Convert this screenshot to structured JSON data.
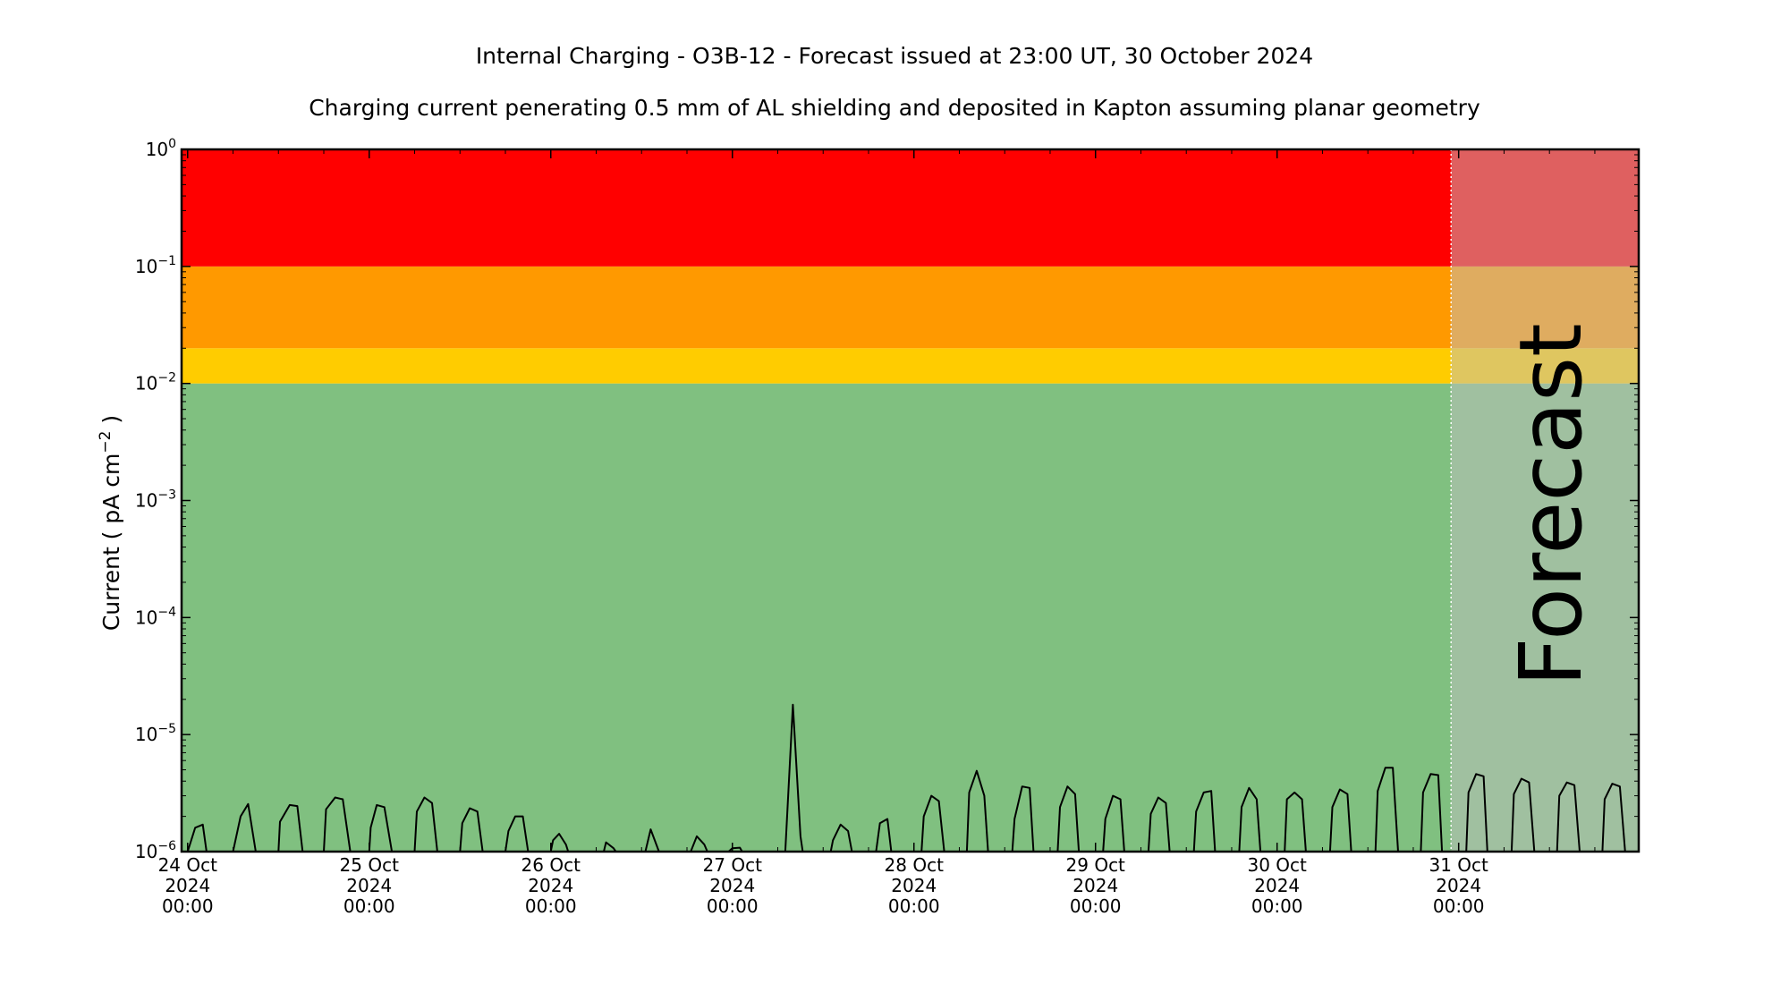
{
  "chart_data": {
    "type": "line",
    "title": "Internal Charging - O3B-12 - Forecast issued at 23:00 UT, 30 October 2024",
    "subtitle": "Charging current penerating 0.5 mm of AL shielding and deposited in Kapton assuming planar geometry",
    "ylabel": "Current ( pA cm",
    "ylabel_sup": "−2",
    "ylabel_tail": " )",
    "y_scale": "log",
    "ylim": [
      1e-06,
      1
    ],
    "y_ticks": [
      {
        "value": 1e-06,
        "base": "10",
        "exp": "−6"
      },
      {
        "value": 1e-05,
        "base": "10",
        "exp": "−5"
      },
      {
        "value": 0.0001,
        "base": "10",
        "exp": "−4"
      },
      {
        "value": 0.001,
        "base": "10",
        "exp": "−3"
      },
      {
        "value": 0.01,
        "base": "10",
        "exp": "−2"
      },
      {
        "value": 0.1,
        "base": "10",
        "exp": "−1"
      },
      {
        "value": 1,
        "base": "10",
        "exp": "0"
      }
    ],
    "xlim_hours": [
      -0.8,
      191.8
    ],
    "x_ticks": [
      {
        "hour": 0,
        "lines": [
          "24 Oct",
          "2024",
          "00:00"
        ]
      },
      {
        "hour": 24,
        "lines": [
          "25 Oct",
          "2024",
          "00:00"
        ]
      },
      {
        "hour": 48,
        "lines": [
          "26 Oct",
          "2024",
          "00:00"
        ]
      },
      {
        "hour": 72,
        "lines": [
          "27 Oct",
          "2024",
          "00:00"
        ]
      },
      {
        "hour": 96,
        "lines": [
          "28 Oct",
          "2024",
          "00:00"
        ]
      },
      {
        "hour": 120,
        "lines": [
          "29 Oct",
          "2024",
          "00:00"
        ]
      },
      {
        "hour": 144,
        "lines": [
          "30 Oct",
          "2024",
          "00:00"
        ]
      },
      {
        "hour": 168,
        "lines": [
          "31 Oct",
          "2024",
          "00:00"
        ]
      }
    ],
    "risk_bands": [
      {
        "level": "low",
        "from": 1e-06,
        "to": 0.01,
        "color": "#80c080"
      },
      {
        "level": "moderate",
        "from": 0.01,
        "to": 0.02,
        "color": "#ffcc00"
      },
      {
        "level": "high",
        "from": 0.02,
        "to": 0.1,
        "color": "#ff9900"
      },
      {
        "level": "very-high",
        "from": 0.1,
        "to": 1,
        "color": "#ff0000"
      }
    ],
    "forecast": {
      "label": "Forecast",
      "start_hour": 167,
      "end_hour": 191.8,
      "shade_color": "#c0c0c0",
      "text_color": "#6b7d69"
    },
    "series": [
      {
        "color": "#000000",
        "points": [
          [
            0.0,
            1e-06
          ],
          [
            1.0,
            1.6e-06
          ],
          [
            2.0,
            1.7e-06
          ],
          [
            2.5,
            1e-06
          ],
          [
            6.0,
            1e-06
          ],
          [
            7.0,
            2e-06
          ],
          [
            8.0,
            2.55e-06
          ],
          [
            9.0,
            1e-06
          ],
          [
            12.0,
            1e-06
          ],
          [
            12.2,
            1.8e-06
          ],
          [
            13.5,
            2.5e-06
          ],
          [
            14.5,
            2.45e-06
          ],
          [
            15.2,
            1e-06
          ],
          [
            18.0,
            1e-06
          ],
          [
            18.3,
            2.3e-06
          ],
          [
            19.5,
            2.9e-06
          ],
          [
            20.5,
            2.8e-06
          ],
          [
            21.5,
            1e-06
          ],
          [
            24.0,
            1e-06
          ],
          [
            24.2,
            1.6e-06
          ],
          [
            25.0,
            2.5e-06
          ],
          [
            26.0,
            2.4e-06
          ],
          [
            27.0,
            1e-06
          ],
          [
            30.0,
            1e-06
          ],
          [
            30.3,
            2.2e-06
          ],
          [
            31.3,
            2.9e-06
          ],
          [
            32.3,
            2.6e-06
          ],
          [
            33.0,
            1e-06
          ],
          [
            36.0,
            1e-06
          ],
          [
            36.3,
            1.75e-06
          ],
          [
            37.3,
            2.35e-06
          ],
          [
            38.3,
            2.2e-06
          ],
          [
            39.0,
            1e-06
          ],
          [
            42.0,
            1e-06
          ],
          [
            42.4,
            1.5e-06
          ],
          [
            43.3,
            2e-06
          ],
          [
            44.3,
            2e-06
          ],
          [
            45.0,
            1e-06
          ],
          [
            48.0,
            1e-06
          ],
          [
            48.3,
            1.25e-06
          ],
          [
            49.1,
            1.42e-06
          ],
          [
            50.0,
            1.15e-06
          ],
          [
            50.3,
            1e-06
          ],
          [
            55.0,
            1e-06
          ],
          [
            55.3,
            1.2e-06
          ],
          [
            56.3,
            1.07e-06
          ],
          [
            56.6,
            1e-06
          ],
          [
            60.5,
            1e-06
          ],
          [
            61.2,
            1.55e-06
          ],
          [
            62.3,
            1e-06
          ],
          [
            66.5,
            1e-06
          ],
          [
            67.3,
            1.35e-06
          ],
          [
            68.3,
            1.15e-06
          ],
          [
            68.7,
            1e-06
          ],
          [
            71.5,
            1e-06
          ],
          [
            72.0,
            1.07e-06
          ],
          [
            73.0,
            1.08e-06
          ],
          [
            73.3,
            1e-06
          ],
          [
            79.0,
            1e-06
          ],
          [
            80.0,
            1.8e-05
          ],
          [
            81.0,
            1.35e-06
          ],
          [
            81.3,
            1e-06
          ],
          [
            85.0,
            1e-06
          ],
          [
            85.3,
            1.25e-06
          ],
          [
            86.3,
            1.7e-06
          ],
          [
            87.3,
            1.5e-06
          ],
          [
            87.8,
            1e-06
          ],
          [
            91.0,
            1e-06
          ],
          [
            91.5,
            1.75e-06
          ],
          [
            92.5,
            1.9e-06
          ],
          [
            93.0,
            1e-06
          ],
          [
            97.0,
            1e-06
          ],
          [
            97.3,
            2e-06
          ],
          [
            98.3,
            3e-06
          ],
          [
            99.3,
            2.7e-06
          ],
          [
            100.0,
            1e-06
          ],
          [
            103.0,
            1e-06
          ],
          [
            103.3,
            3.2e-06
          ],
          [
            104.3,
            4.9e-06
          ],
          [
            105.3,
            3e-06
          ],
          [
            105.8,
            1e-06
          ],
          [
            109.0,
            1e-06
          ],
          [
            109.3,
            1.9e-06
          ],
          [
            110.3,
            3.6e-06
          ],
          [
            111.3,
            3.5e-06
          ],
          [
            111.8,
            1e-06
          ],
          [
            115.0,
            1e-06
          ],
          [
            115.3,
            2.4e-06
          ],
          [
            116.3,
            3.6e-06
          ],
          [
            117.3,
            3.1e-06
          ],
          [
            117.8,
            1e-06
          ],
          [
            121.0,
            1e-06
          ],
          [
            121.3,
            1.9e-06
          ],
          [
            122.3,
            3e-06
          ],
          [
            123.3,
            2.8e-06
          ],
          [
            123.8,
            1e-06
          ],
          [
            127.0,
            1e-06
          ],
          [
            127.3,
            2.1e-06
          ],
          [
            128.3,
            2.9e-06
          ],
          [
            129.3,
            2.6e-06
          ],
          [
            129.8,
            1e-06
          ],
          [
            133.0,
            1e-06
          ],
          [
            133.3,
            2.2e-06
          ],
          [
            134.3,
            3.2e-06
          ],
          [
            135.3,
            3.3e-06
          ],
          [
            135.8,
            1e-06
          ],
          [
            139.0,
            1e-06
          ],
          [
            139.3,
            2.4e-06
          ],
          [
            140.3,
            3.5e-06
          ],
          [
            141.3,
            2.8e-06
          ],
          [
            141.8,
            1e-06
          ],
          [
            145.0,
            1e-06
          ],
          [
            145.3,
            2.8e-06
          ],
          [
            146.3,
            3.2e-06
          ],
          [
            147.3,
            2.8e-06
          ],
          [
            147.8,
            1e-06
          ],
          [
            151.0,
            1e-06
          ],
          [
            151.3,
            2.4e-06
          ],
          [
            152.3,
            3.4e-06
          ],
          [
            153.3,
            3.1e-06
          ],
          [
            153.8,
            1e-06
          ],
          [
            157.0,
            1e-06
          ],
          [
            157.3,
            3.3e-06
          ],
          [
            158.3,
            5.2e-06
          ],
          [
            159.3,
            5.2e-06
          ],
          [
            160.0,
            1e-06
          ],
          [
            163.0,
            1e-06
          ],
          [
            163.3,
            3.2e-06
          ],
          [
            164.3,
            4.6e-06
          ],
          [
            165.3,
            4.5e-06
          ],
          [
            165.8,
            1e-06
          ],
          [
            169.0,
            1e-06
          ],
          [
            169.3,
            3.2e-06
          ],
          [
            170.3,
            4.6e-06
          ],
          [
            171.3,
            4.4e-06
          ],
          [
            171.8,
            1e-06
          ],
          [
            175.0,
            1e-06
          ],
          [
            175.3,
            3.1e-06
          ],
          [
            176.3,
            4.2e-06
          ],
          [
            177.3,
            3.9e-06
          ],
          [
            178.0,
            1e-06
          ],
          [
            181.0,
            1e-06
          ],
          [
            181.3,
            3e-06
          ],
          [
            182.3,
            3.9e-06
          ],
          [
            183.3,
            3.7e-06
          ],
          [
            184.0,
            1e-06
          ],
          [
            187.0,
            1e-06
          ],
          [
            187.3,
            2.8e-06
          ],
          [
            188.3,
            3.8e-06
          ],
          [
            189.3,
            3.6e-06
          ],
          [
            190.0,
            1e-06
          ]
        ]
      }
    ]
  }
}
